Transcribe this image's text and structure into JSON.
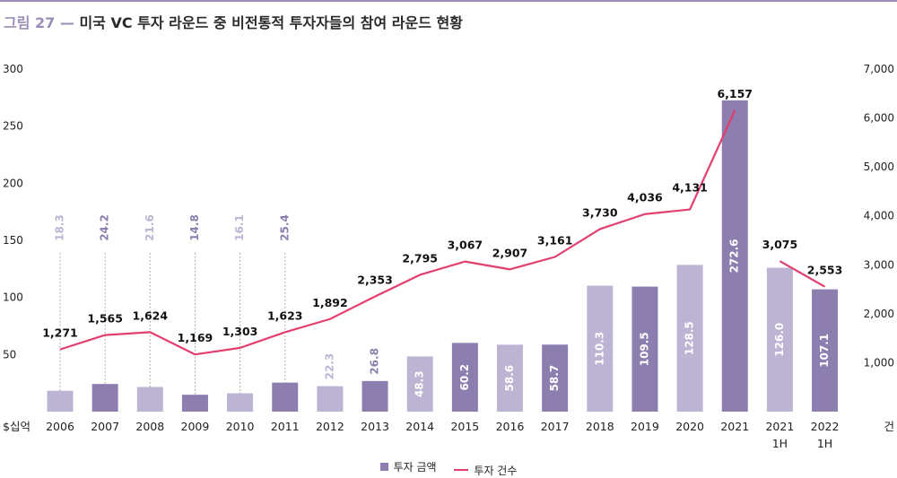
{
  "title": {
    "figure": "그림 27",
    "separator": "—",
    "text": "미국 VC 투자 라운드 중 비전통적 투자자들의 참여 라운드 현황"
  },
  "colors": {
    "bar_dark": "#8c7fb0",
    "bar_light": "#bdb3d2",
    "line": "#e23f6e",
    "title_accent": "#9b8db7"
  },
  "chart_data": {
    "type": "bar",
    "categories": [
      "2006",
      "2007",
      "2008",
      "2009",
      "2010",
      "2011",
      "2012",
      "2013",
      "2014",
      "2015",
      "2016",
      "2017",
      "2018",
      "2019",
      "2020",
      "2021",
      "2021\n1H",
      "2022\n1H"
    ],
    "left_axis": {
      "label": "$십억",
      "ylim": [
        0,
        300
      ],
      "ticks": [
        50,
        100,
        150,
        200,
        250,
        300
      ]
    },
    "right_axis": {
      "label": "건",
      "ylim": [
        0,
        7000
      ],
      "ticks": [
        "1,000",
        "2,000",
        "3,000",
        "4,000",
        "5,000",
        "6,000",
        "7,000"
      ],
      "tick_values": [
        1000,
        2000,
        3000,
        4000,
        5000,
        6000,
        7000
      ]
    },
    "series": [
      {
        "name": "투자 금액",
        "type": "bar",
        "values": [
          18.3,
          24.2,
          21.6,
          14.8,
          16.1,
          25.4,
          22.3,
          26.8,
          48.3,
          60.2,
          58.6,
          58.7,
          110.3,
          109.5,
          128.5,
          272.6,
          126.0,
          107.1
        ],
        "labels": [
          "18.3",
          "24.2",
          "21.6",
          "14.8",
          "16.1",
          "25.4",
          "22.3",
          "26.8",
          "48.3",
          "60.2",
          "58.6",
          "58.7",
          "110.3",
          "109.5",
          "128.5",
          "272.6",
          "126.0",
          "107.1"
        ],
        "shade": [
          "light",
          "dark",
          "light",
          "dark",
          "light",
          "dark",
          "light",
          "dark",
          "light",
          "dark",
          "light",
          "dark",
          "light",
          "dark",
          "light",
          "dark",
          "light",
          "dark"
        ]
      },
      {
        "name": "투자 건수",
        "type": "line",
        "axis": "right",
        "values": [
          1271,
          1565,
          1624,
          1169,
          1303,
          1623,
          1892,
          2353,
          2795,
          3067,
          2907,
          3161,
          3730,
          4036,
          4131,
          6157,
          3075,
          2553
        ],
        "labels": [
          "1,271",
          "1,565",
          "1,624",
          "1,169",
          "1,303",
          "1,623",
          "1,892",
          "2,353",
          "2,795",
          "3,067",
          "2,907",
          "3,161",
          "3,730",
          "4,036",
          "4,131",
          "6,157",
          "3,075",
          "2,553"
        ]
      }
    ],
    "grid": false,
    "legend": "bottom-center"
  }
}
